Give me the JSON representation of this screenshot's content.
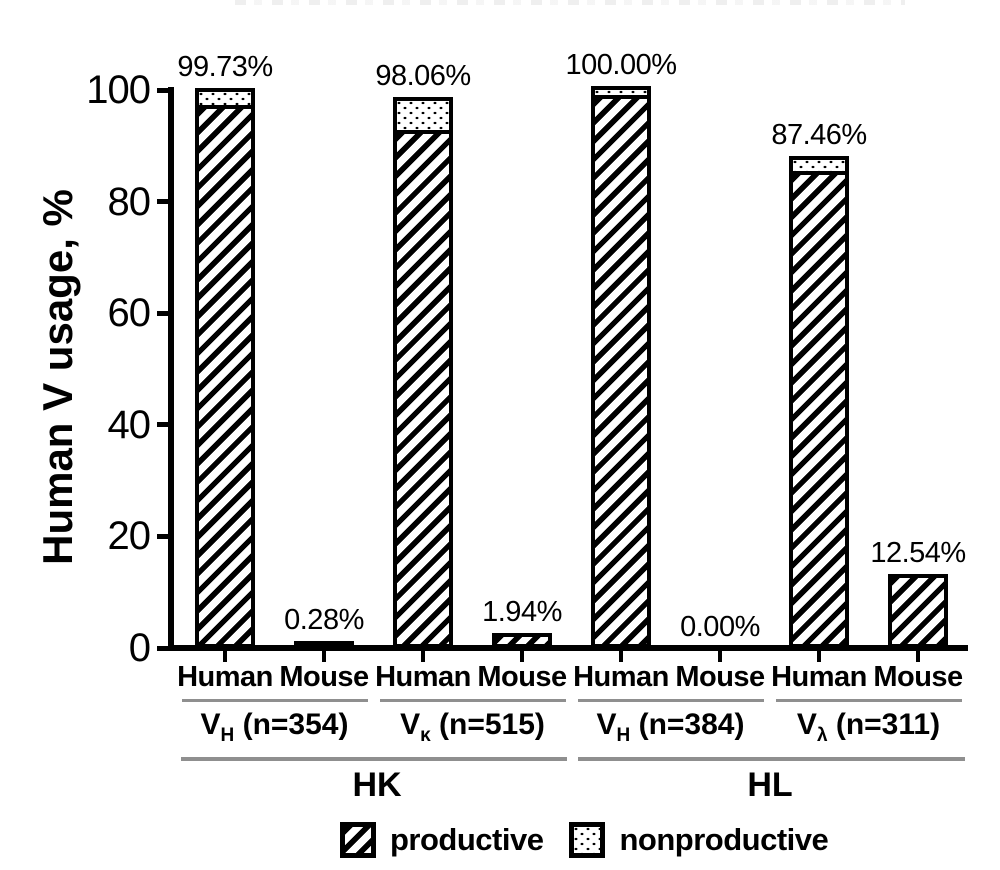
{
  "chart_data": {
    "type": "bar",
    "stacked": true,
    "title": "",
    "ylabel": "Human V usage, %",
    "ylim": [
      0,
      100
    ],
    "yticks": [
      "0",
      "20",
      "40",
      "60",
      "80",
      "100"
    ],
    "grid": false,
    "legend": [
      "productive",
      "nonproductive"
    ],
    "legend_position": "bottom",
    "parent_groups": [
      "HK",
      "HL"
    ],
    "groups": [
      {
        "gene": "V",
        "sub": "H",
        "n_label": "(n=354)",
        "parent": "HK",
        "bars": [
          {
            "category": "Human",
            "total": 99.73,
            "total_label": "99.73%",
            "productive": 96.3,
            "nonproductive": 3.43
          },
          {
            "category": "Mouse",
            "total": 0.28,
            "total_label": "0.28%",
            "productive": 0.28,
            "nonproductive": 0
          }
        ]
      },
      {
        "gene": "V",
        "sub": "κ",
        "n_label": "(n=515)",
        "parent": "HK",
        "bars": [
          {
            "category": "Human",
            "total": 98.06,
            "total_label": "98.06%",
            "productive": 91.8,
            "nonproductive": 6.26
          },
          {
            "category": "Mouse",
            "total": 1.94,
            "total_label": "1.94%",
            "productive": 1.94,
            "nonproductive": 0
          }
        ]
      },
      {
        "gene": "V",
        "sub": "H",
        "n_label": "(n=384)",
        "parent": "HL",
        "bars": [
          {
            "category": "Human",
            "total": 100.0,
            "total_label": "100.00%",
            "productive": 98.0,
            "nonproductive": 2.0
          },
          {
            "category": "Mouse",
            "total": 0.0,
            "total_label": "0.00%",
            "productive": 0,
            "nonproductive": 0
          }
        ]
      },
      {
        "gene": "V",
        "sub": "λ",
        "n_label": "(n=311)",
        "parent": "HL",
        "bars": [
          {
            "category": "Human",
            "total": 87.46,
            "total_label": "87.46%",
            "productive": 84.5,
            "nonproductive": 2.96
          },
          {
            "category": "Mouse",
            "total": 12.54,
            "total_label": "12.54%",
            "productive": 12.54,
            "nonproductive": 0
          }
        ]
      }
    ]
  },
  "colors": {
    "ink": "#000000",
    "separator_gray": "#8f8f8f",
    "background": "#ffffff"
  }
}
